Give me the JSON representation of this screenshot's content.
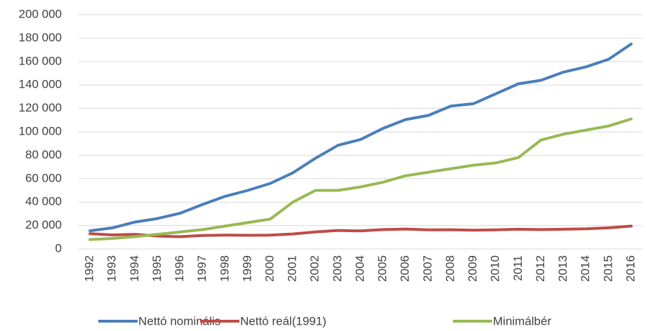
{
  "chart_data": {
    "type": "line",
    "categories": [
      "1992",
      "1993",
      "1994",
      "1995",
      "1996",
      "1997",
      "1998",
      "1999",
      "2000",
      "2001",
      "2002",
      "2003",
      "2004",
      "2005",
      "2006",
      "2007",
      "2008",
      "2009",
      "2010",
      "2011",
      "2012",
      "2013",
      "2014",
      "2015",
      "2016"
    ],
    "series": [
      {
        "name": "Nettó nominális",
        "color": "#4a7ebb",
        "values": [
          15500,
          18000,
          23000,
          26000,
          30500,
          38000,
          45000,
          50000,
          56000,
          65000,
          77500,
          88500,
          93500,
          103000,
          110500,
          114000,
          122000,
          124000,
          132500,
          141000,
          144000,
          151000,
          155500,
          162000,
          175000
        ]
      },
      {
        "name": "Nettó reál(1991)",
        "color": "#be4b48",
        "values": [
          13000,
          12000,
          12500,
          11000,
          10500,
          11500,
          11800,
          11700,
          11800,
          12800,
          14500,
          15800,
          15400,
          16500,
          17000,
          16300,
          16400,
          16000,
          16300,
          16800,
          16500,
          16800,
          17200,
          18000,
          19500
        ]
      },
      {
        "name": "Minimálbér",
        "color": "#98b954",
        "values": [
          8000,
          9000,
          10500,
          12500,
          14500,
          16500,
          19500,
          22500,
          25500,
          40000,
          50000,
          50000,
          53000,
          57000,
          62500,
          65500,
          68500,
          71500,
          73500,
          78000,
          93000,
          98000,
          101500,
          105000,
          111000
        ]
      }
    ],
    "ylim": [
      0,
      200000
    ],
    "yticks": [
      0,
      {
        "value": 20000,
        "label": "20 000"
      },
      {
        "value": 40000,
        "label": "40 000"
      },
      {
        "value": 60000,
        "label": "60 000"
      },
      {
        "value": 80000,
        "label": "80 000"
      },
      {
        "value": 100000,
        "label": "100 000"
      },
      {
        "value": 120000,
        "label": "120 000"
      },
      {
        "value": 140000,
        "label": "140 000"
      },
      {
        "value": 160000,
        "label": "160 000"
      },
      {
        "value": 180000,
        "label": "180 000"
      },
      {
        "value": 200000,
        "label": "200 000"
      }
    ],
    "grid": true,
    "legend": "bottom"
  }
}
